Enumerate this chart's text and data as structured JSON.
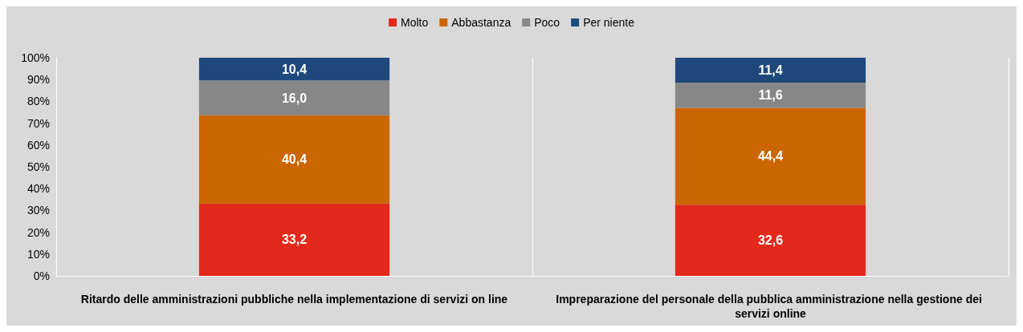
{
  "chart_data": {
    "type": "bar",
    "stacked": true,
    "categories": [
      "Ritardo delle amministrazioni pubbliche nella implementazione di servizi on line",
      "Impreparazione del personale della pubblica amministrazione nella gestione dei servizi online"
    ],
    "series": [
      {
        "name": "Molto",
        "color": "#e3281c",
        "values": [
          33.2,
          32.6
        ],
        "value_labels": [
          "33,2",
          "32,6"
        ]
      },
      {
        "name": "Abbastanza",
        "color": "#cc6600",
        "values": [
          40.4,
          44.4
        ],
        "value_labels": [
          "40,4",
          "44,4"
        ]
      },
      {
        "name": "Poco",
        "color": "#878787",
        "values": [
          16.0,
          11.6
        ],
        "value_labels": [
          "16,0",
          "11,6"
        ]
      },
      {
        "name": "Per niente",
        "color": "#1f497d",
        "values": [
          10.4,
          11.4
        ],
        "value_labels": [
          "10,4",
          "11,4"
        ]
      }
    ],
    "ylim": [
      0,
      100
    ],
    "yticks": [
      {
        "value": 0,
        "label": "0%"
      },
      {
        "value": 10,
        "label": "10%"
      },
      {
        "value": 20,
        "label": "20%"
      },
      {
        "value": 30,
        "label": "30%"
      },
      {
        "value": 40,
        "label": "40%"
      },
      {
        "value": 50,
        "label": "50%"
      },
      {
        "value": 60,
        "label": "60%"
      },
      {
        "value": 70,
        "label": "70%"
      },
      {
        "value": 80,
        "label": "80%"
      },
      {
        "value": 90,
        "label": "90%"
      },
      {
        "value": 100,
        "label": "100%"
      }
    ],
    "grid": false,
    "legend": "top"
  }
}
